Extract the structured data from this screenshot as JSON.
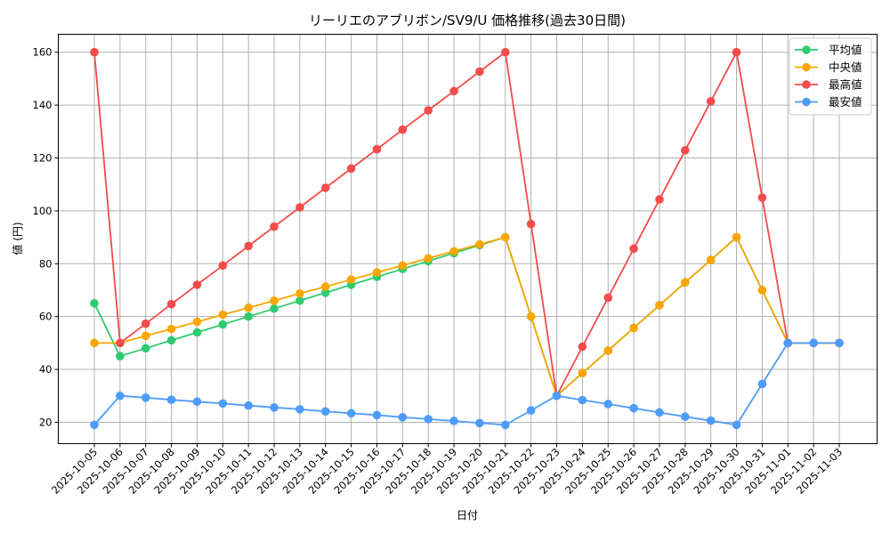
{
  "chart_data": {
    "type": "line",
    "title": "リーリエのアブリボン/SV9/U 価格推移(過去30日間)",
    "xlabel": "日付",
    "ylabel": "値 (円)",
    "ylim": [
      11.9,
      166.8
    ],
    "yticks": [
      20,
      40,
      60,
      80,
      100,
      120,
      140,
      160
    ],
    "grid": true,
    "legend_position": "upper right",
    "x": [
      "2025-10-05",
      "2025-10-06",
      "2025-10-07",
      "2025-10-08",
      "2025-10-09",
      "2025-10-10",
      "2025-10-11",
      "2025-10-12",
      "2025-10-13",
      "2025-10-14",
      "2025-10-15",
      "2025-10-16",
      "2025-10-17",
      "2025-10-18",
      "2025-10-19",
      "2025-10-20",
      "2025-10-21",
      "2025-10-22",
      "2025-10-23",
      "2025-10-24",
      "2025-10-25",
      "2025-10-26",
      "2025-10-27",
      "2025-10-28",
      "2025-10-29",
      "2025-10-30",
      "2025-10-31",
      "2025-11-01",
      "2025-11-02",
      "2025-11-03"
    ],
    "series": [
      {
        "name": "平均値",
        "color": "#2ecc71",
        "values": [
          65,
          45,
          48,
          51,
          54,
          57,
          60,
          63,
          66,
          69,
          72,
          75,
          78,
          81,
          84,
          87,
          90,
          60,
          30,
          38.6,
          47.1,
          55.7,
          64.3,
          72.9,
          81.4,
          90,
          70,
          50,
          50,
          50
        ]
      },
      {
        "name": "中央値",
        "color": "#f9a602",
        "values": [
          50,
          50,
          52.7,
          55.3,
          58,
          60.7,
          63.3,
          66,
          68.7,
          71.3,
          74,
          76.7,
          79.3,
          82,
          84.7,
          87.3,
          90,
          60,
          30,
          38.6,
          47.1,
          55.7,
          64.3,
          72.9,
          81.4,
          90,
          70,
          50,
          50,
          50
        ]
      },
      {
        "name": "最高値",
        "color": "#f44b4b",
        "values": [
          160,
          50,
          57.3,
          64.7,
          72,
          79.3,
          86.7,
          94,
          101.3,
          108.7,
          116,
          123.3,
          130.7,
          138,
          145.3,
          152.7,
          160,
          95,
          30,
          48.6,
          67.1,
          85.7,
          104.3,
          122.9,
          141.4,
          160,
          105,
          50,
          50,
          50
        ]
      },
      {
        "name": "最安値",
        "color": "#4d9cf8",
        "values": [
          19,
          30,
          29.3,
          28.5,
          27.8,
          27.1,
          26.3,
          25.6,
          24.9,
          24.1,
          23.4,
          22.7,
          21.9,
          21.2,
          20.5,
          19.7,
          19,
          24.5,
          30,
          28.4,
          26.9,
          25.3,
          23.7,
          22.1,
          20.6,
          19,
          34.5,
          50,
          50,
          50
        ]
      }
    ]
  }
}
